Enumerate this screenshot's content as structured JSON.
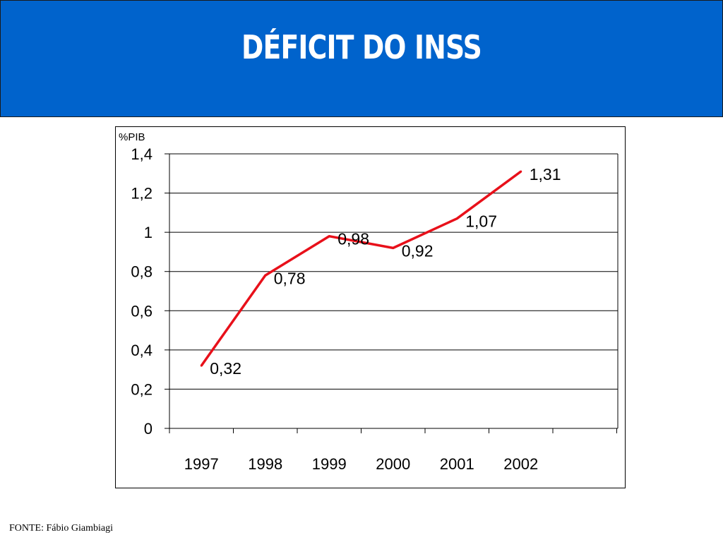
{
  "header": {
    "title": "DÉFICIT DO INSS",
    "background_color": "#0063cc"
  },
  "footer": {
    "source": "FONTE: Fábio Giambiagi"
  },
  "chart_data": {
    "type": "line",
    "title": "",
    "xlabel": "",
    "ylabel": "%PIB",
    "categories": [
      "1997",
      "1998",
      "1999",
      "2000",
      "2001",
      "2002"
    ],
    "series": [
      {
        "color": "#e8101a",
        "values": [
          0.32,
          0.78,
          0.98,
          0.92,
          1.07,
          1.31
        ],
        "labels": [
          "0,32",
          "0,78",
          "0,98",
          "0,92",
          "1,07",
          "1,31"
        ]
      }
    ],
    "ylim": [
      0,
      1.4
    ],
    "yticks": [
      0,
      0.2,
      0.4,
      0.6,
      0.8,
      1.0,
      1.2,
      1.4
    ],
    "ytick_labels": [
      "0",
      "0,2",
      "0,4",
      "0,6",
      "0,8",
      "1",
      "1,2",
      "1,4"
    ],
    "grid": true,
    "legend": "none"
  }
}
